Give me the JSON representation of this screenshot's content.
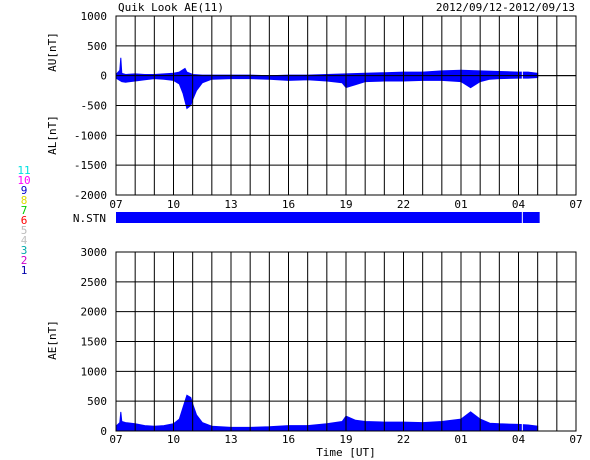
{
  "chart_data": {
    "title": "Quik Look AE(11)",
    "date_range": "2012/09/12-2012/09/13",
    "x_ticks": [
      "07",
      "10",
      "13",
      "16",
      "19",
      "22",
      "01",
      "04",
      "07"
    ],
    "xlabel": "Time [UT]",
    "x_range_hours": [
      7,
      31
    ],
    "data_end_hour": 29.0,
    "data_gap_hour": 28.2,
    "fill_color": "#0000ff",
    "panels": [
      {
        "type": "area",
        "ylabel_top": "AU[nT]",
        "ylabel_bottom": "AL[nT]",
        "ylim": [
          -2000,
          1000
        ],
        "y_ticks": [
          "1000",
          "500",
          "0",
          "-500",
          "-1000",
          "-1500",
          "-2000"
        ],
        "y_values": [
          1000,
          500,
          0,
          -500,
          -1000,
          -1500,
          -2000
        ],
        "series": [
          {
            "name": "AU",
            "x": [
              7.0,
              7.2,
              7.25,
              7.3,
              7.5,
              8.0,
              8.5,
              9.0,
              9.5,
              10.0,
              10.3,
              10.6,
              10.7,
              11.0,
              11.5,
              12.0,
              13.0,
              14.0,
              15.0,
              16.0,
              17.0,
              18.0,
              19.0,
              20.0,
              21.0,
              22.0,
              23.0,
              24.0,
              25.0,
              26.0,
              27.0,
              28.0,
              28.5,
              29.0
            ],
            "y": [
              20,
              90,
              300,
              40,
              20,
              30,
              20,
              20,
              30,
              40,
              60,
              120,
              60,
              20,
              10,
              10,
              10,
              10,
              0,
              10,
              10,
              20,
              30,
              40,
              50,
              60,
              60,
              80,
              90,
              80,
              70,
              60,
              60,
              40
            ]
          },
          {
            "name": "AL",
            "x": [
              7.0,
              7.3,
              7.5,
              8.0,
              8.5,
              9.0,
              9.5,
              10.0,
              10.3,
              10.5,
              10.7,
              10.9,
              11.0,
              11.2,
              11.5,
              12.0,
              13.0,
              14.0,
              15.0,
              16.0,
              17.0,
              18.0,
              18.8,
              19.0,
              19.5,
              20.0,
              21.0,
              22.0,
              23.0,
              24.0,
              25.0,
              25.5,
              26.0,
              26.5,
              27.0,
              28.0,
              28.5,
              29.0
            ],
            "y": [
              -40,
              -100,
              -110,
              -90,
              -70,
              -50,
              -60,
              -80,
              -140,
              -300,
              -550,
              -500,
              -400,
              -250,
              -120,
              -60,
              -50,
              -50,
              -60,
              -80,
              -70,
              -90,
              -120,
              -200,
              -150,
              -100,
              -90,
              -90,
              -80,
              -80,
              -100,
              -200,
              -100,
              -60,
              -50,
              -40,
              -40,
              -30
            ]
          }
        ]
      },
      {
        "type": "bar",
        "ylabel": "N.STN",
        "station_labels": [
          {
            "label": "11",
            "color": "#00e0e0"
          },
          {
            "label": "10",
            "color": "#ff00ff"
          },
          {
            "label": "9",
            "color": "#0000cc"
          },
          {
            "label": "8",
            "color": "#dddd00"
          },
          {
            "label": "7",
            "color": "#00cc00"
          },
          {
            "label": "6",
            "color": "#ff0000"
          },
          {
            "label": "5",
            "color": "#bbbbbb"
          },
          {
            "label": "4",
            "color": "#c0c0c0"
          },
          {
            "label": "3",
            "color": "#00aaaa"
          },
          {
            "label": "2",
            "color": "#cc00cc"
          },
          {
            "label": "1",
            "color": "#0000aa"
          }
        ]
      },
      {
        "type": "area",
        "ylabel": "AE[nT]",
        "ylim": [
          0,
          3000
        ],
        "y_ticks": [
          "3000",
          "2500",
          "2000",
          "1500",
          "1000",
          "500",
          "0"
        ],
        "y_values": [
          3000,
          2500,
          2000,
          1500,
          1000,
          500,
          0
        ],
        "series": [
          {
            "name": "AE",
            "x": [
              7.0,
              7.2,
              7.25,
              7.3,
              7.5,
              8.0,
              8.5,
              9.0,
              9.5,
              10.0,
              10.3,
              10.5,
              10.7,
              10.9,
              11.0,
              11.2,
              11.5,
              12.0,
              13.0,
              14.0,
              15.0,
              16.0,
              17.0,
              18.0,
              18.8,
              19.0,
              19.5,
              20.0,
              21.0,
              22.0,
              23.0,
              24.0,
              25.0,
              25.5,
              26.0,
              26.5,
              27.0,
              28.0,
              28.5,
              29.0
            ],
            "y": [
              80,
              140,
              320,
              160,
              140,
              120,
              90,
              80,
              90,
              120,
              200,
              400,
              600,
              560,
              450,
              270,
              140,
              80,
              60,
              60,
              70,
              90,
              90,
              120,
              160,
              250,
              180,
              160,
              150,
              150,
              140,
              160,
              200,
              320,
              200,
              130,
              120,
              110,
              100,
              80
            ]
          }
        ]
      }
    ]
  }
}
